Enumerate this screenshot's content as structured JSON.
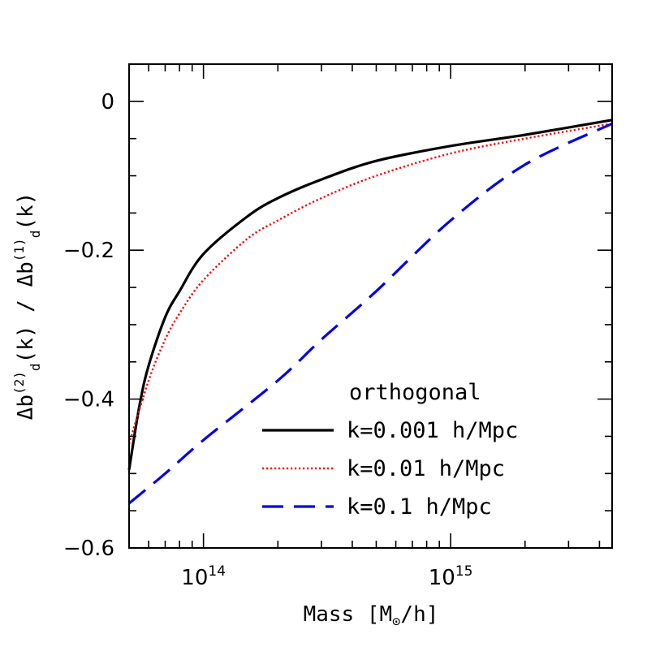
{
  "chart_data": {
    "type": "line",
    "xlabel": "Mass [M⊙/h]",
    "ylabel": "Δb(2)d(k) / Δb(1)d(k)",
    "x_scale": "log",
    "xlim": [
      50000000000000,
      4500000000000000
    ],
    "ylim": [
      -0.6,
      0.05
    ],
    "x_ticks": [
      {
        "value": 100000000000000,
        "base": "10",
        "exp": "14"
      },
      {
        "value": 1000000000000000,
        "base": "10",
        "exp": "15"
      }
    ],
    "y_ticks": [
      {
        "value": 0,
        "label": "0"
      },
      {
        "value": -0.2,
        "label": "−0.2"
      },
      {
        "value": -0.4,
        "label": "−0.4"
      },
      {
        "value": -0.6,
        "label": "−0.6"
      }
    ],
    "legend": {
      "title": "orthogonal",
      "placement": "bottom-right"
    },
    "series": [
      {
        "name": "k=0.001 h/Mpc",
        "color": "#000000",
        "dash": "solid",
        "x": [
          50000000000000,
          55000000000000,
          60000000000000,
          70000000000000,
          80000000000000,
          100000000000000,
          150000000000000,
          200000000000000,
          300000000000000,
          500000000000000,
          1000000000000000,
          2000000000000000,
          4500000000000000
        ],
        "y": [
          -0.495,
          -0.41,
          -0.355,
          -0.29,
          -0.255,
          -0.205,
          -0.155,
          -0.13,
          -0.105,
          -0.08,
          -0.06,
          -0.045,
          -0.025
        ]
      },
      {
        "name": "k=0.01 h/Mpc",
        "color": "#ff0000",
        "dash": "dotted",
        "x": [
          50000000000000,
          60000000000000,
          70000000000000,
          80000000000000,
          100000000000000,
          150000000000000,
          200000000000000,
          300000000000000,
          500000000000000,
          1000000000000000,
          2000000000000000,
          4500000000000000
        ],
        "y": [
          -0.46,
          -0.375,
          -0.32,
          -0.285,
          -0.24,
          -0.185,
          -0.16,
          -0.13,
          -0.1,
          -0.07,
          -0.05,
          -0.03
        ]
      },
      {
        "name": "k=0.1 h/Mpc",
        "color": "#0000ee",
        "dash": "dashed",
        "x": [
          50000000000000,
          70000000000000,
          100000000000000,
          200000000000000,
          300000000000000,
          500000000000000,
          1000000000000000,
          2000000000000000,
          4500000000000000
        ],
        "y": [
          -0.54,
          -0.5,
          -0.455,
          -0.375,
          -0.32,
          -0.255,
          -0.16,
          -0.085,
          -0.03
        ]
      }
    ]
  }
}
